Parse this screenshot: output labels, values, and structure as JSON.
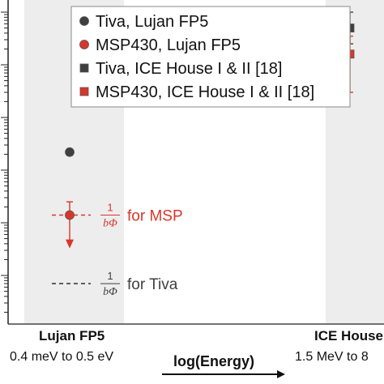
{
  "chart_data": {
    "type": "scatter",
    "yscale": "log",
    "grid": false,
    "legend_position": "top",
    "categories": [
      {
        "name": "Lujan FP5",
        "range": "0.4 meV to 0.5 eV"
      },
      {
        "name": "ICE House",
        "range": "1.5 MeV to 8"
      }
    ],
    "xlabel": "log(Energy)",
    "series": [
      {
        "name": "Tiva, Lujan FP5",
        "marker": "circle",
        "color": "#3f3f3f",
        "category": 0,
        "y": 2.2e-06,
        "err_low": 1.9e-06,
        "err_high": 2.5e-06
      },
      {
        "name": "MSP430, Lujan FP5",
        "marker": "circle",
        "color": "#d9362b",
        "category": 0,
        "y": 1.4e-07,
        "err_low": 3.5e-08,
        "err_high": 2.5e-07,
        "upper_limit": true
      },
      {
        "name": "Tiva,  ICE House I & II [18]",
        "marker": "square",
        "color": "#3f3f3f",
        "category": 1,
        "y": 0.0005,
        "err_low": 0.00025,
        "err_high": 0.001
      },
      {
        "name": "MSP430, ICE House I & II [18]",
        "marker": "square",
        "color": "#d9362b",
        "category": 1,
        "y": 0.00016,
        "err_low": 3e-05,
        "err_high": 0.00035
      }
    ],
    "reference_lines": [
      {
        "label_fraction": "1/bΦ",
        "label_suffix": "for MSP",
        "color": "#d9362b",
        "y": 1.4e-07
      },
      {
        "label_fraction": "1/bΦ",
        "label_suffix": "for Tiva",
        "color": "#3f3f3f",
        "y": 7e-09
      }
    ],
    "colors": {
      "tiva": "#3f3f3f",
      "msp": "#d9362b",
      "band": "#ededed"
    }
  }
}
